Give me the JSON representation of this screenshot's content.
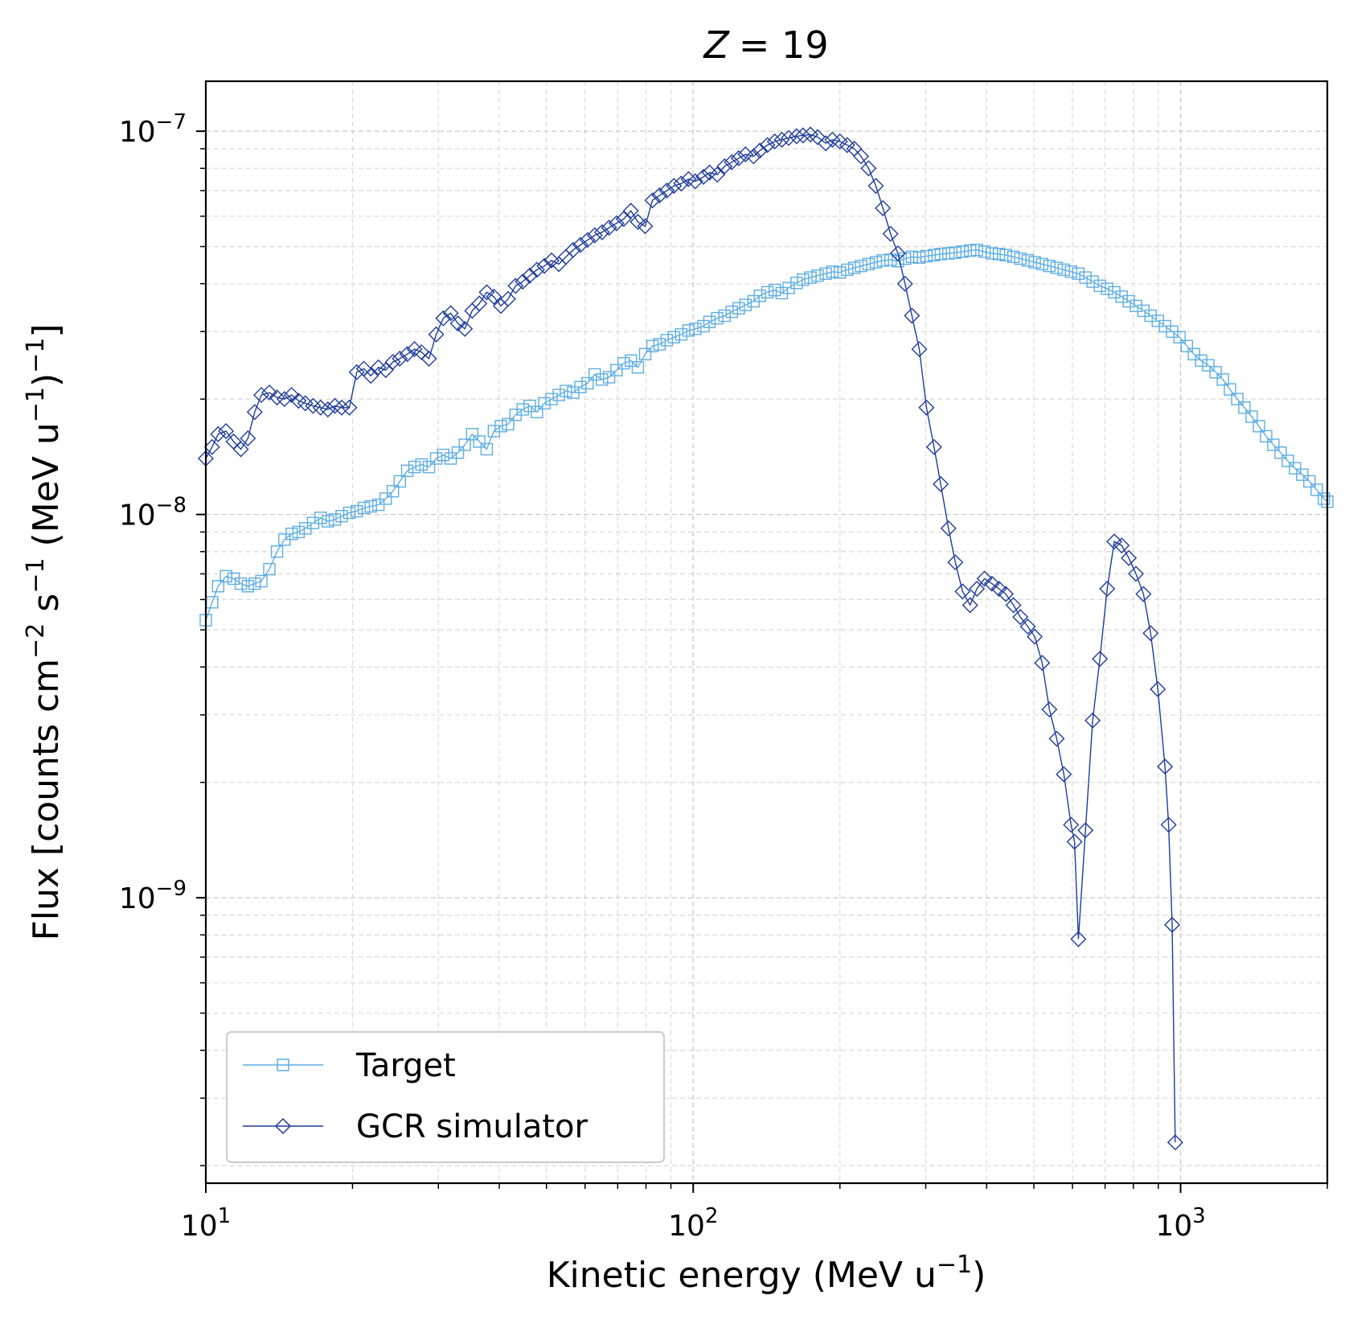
{
  "chart_data": {
    "type": "line",
    "title_var": "Z",
    "title_eq": "= 19",
    "xlabel": "Kinetic energy (MeV u",
    "xlabel_sup": "−1",
    "xlabel_end": ")",
    "ylabel_parts": [
      "Flux [counts cm",
      "−2",
      " s",
      "−1",
      " (MeV u",
      "−1",
      ")",
      "−1",
      "]"
    ],
    "xscale": "log",
    "yscale": "log",
    "xlim": [
      10,
      2000
    ],
    "ylim": [
      1.8e-10,
      1.35e-07
    ],
    "grid": true,
    "legend_position": "lower-left",
    "x_ticks": [
      {
        "value": 10,
        "base": "10",
        "exp": "1"
      },
      {
        "value": 100,
        "base": "10",
        "exp": "2"
      },
      {
        "value": 1000,
        "base": "10",
        "exp": "3"
      }
    ],
    "y_ticks": [
      {
        "value": 1e-09,
        "base": "10",
        "exp": "−9"
      },
      {
        "value": 1e-08,
        "base": "10",
        "exp": "−8"
      },
      {
        "value": 1e-07,
        "base": "10",
        "exp": "−7"
      }
    ],
    "series": [
      {
        "name": "Target",
        "color": "#5dade2",
        "marker": "square",
        "points": [
          [
            10.0,
            5.3e-09
          ],
          [
            10.3,
            5.9e-09
          ],
          [
            10.6,
            6.5e-09
          ],
          [
            11.0,
            6.9e-09
          ],
          [
            11.4,
            6.8e-09
          ],
          [
            11.8,
            6.6e-09
          ],
          [
            12.2,
            6.5e-09
          ],
          [
            12.6,
            6.6e-09
          ],
          [
            13.0,
            6.7e-09
          ],
          [
            13.5,
            7.2e-09
          ],
          [
            14.0,
            8e-09
          ],
          [
            14.5,
            8.6e-09
          ],
          [
            15.0,
            8.9e-09
          ],
          [
            15.5,
            9e-09
          ],
          [
            16.0,
            9.2e-09
          ],
          [
            16.6,
            9.5e-09
          ],
          [
            17.2,
            9.8e-09
          ],
          [
            17.8,
            9.6e-09
          ],
          [
            18.4,
            9.7e-09
          ],
          [
            19.0,
            9.9e-09
          ],
          [
            19.7,
            1.01e-08
          ],
          [
            20.4,
            1.02e-08
          ],
          [
            21.1,
            1.04e-08
          ],
          [
            21.8,
            1.05e-08
          ],
          [
            22.6,
            1.06e-08
          ],
          [
            23.4,
            1.1e-08
          ],
          [
            24.2,
            1.15e-08
          ],
          [
            25.0,
            1.22e-08
          ],
          [
            25.9,
            1.3e-08
          ],
          [
            26.8,
            1.33e-08
          ],
          [
            27.7,
            1.35e-08
          ],
          [
            28.7,
            1.33e-08
          ],
          [
            29.7,
            1.4e-08
          ],
          [
            30.7,
            1.43e-08
          ],
          [
            31.8,
            1.4e-08
          ],
          [
            32.9,
            1.45e-08
          ],
          [
            34.0,
            1.52e-08
          ],
          [
            35.2,
            1.62e-08
          ],
          [
            36.4,
            1.55e-08
          ],
          [
            37.7,
            1.48e-08
          ],
          [
            39.0,
            1.65e-08
          ],
          [
            40.3,
            1.7e-08
          ],
          [
            41.7,
            1.72e-08
          ],
          [
            43.2,
            1.82e-08
          ],
          [
            44.7,
            1.88e-08
          ],
          [
            46.2,
            1.92e-08
          ],
          [
            47.8,
            1.85e-08
          ],
          [
            49.5,
            1.95e-08
          ],
          [
            51.2,
            2e-08
          ],
          [
            53.0,
            2.05e-08
          ],
          [
            54.8,
            2.1e-08
          ],
          [
            56.7,
            2.08e-08
          ],
          [
            58.7,
            2.15e-08
          ],
          [
            60.7,
            2.2e-08
          ],
          [
            62.8,
            2.32e-08
          ],
          [
            65.0,
            2.25e-08
          ],
          [
            67.2,
            2.28e-08
          ],
          [
            69.6,
            2.38e-08
          ],
          [
            72.0,
            2.48e-08
          ],
          [
            74.5,
            2.52e-08
          ],
          [
            77.0,
            2.42e-08
          ],
          [
            79.7,
            2.62e-08
          ],
          [
            82.5,
            2.75e-08
          ],
          [
            85.3,
            2.78e-08
          ],
          [
            88.3,
            2.85e-08
          ],
          [
            91.3,
            2.9e-08
          ],
          [
            94.5,
            2.95e-08
          ],
          [
            97.8,
            3.02e-08
          ],
          [
            101,
            3.05e-08
          ],
          [
            105,
            3.1e-08
          ],
          [
            108,
            3.18e-08
          ],
          [
            112,
            3.25e-08
          ],
          [
            116,
            3.3e-08
          ],
          [
            120,
            3.38e-08
          ],
          [
            124,
            3.45e-08
          ],
          [
            128,
            3.52e-08
          ],
          [
            133,
            3.6e-08
          ],
          [
            137,
            3.72e-08
          ],
          [
            142,
            3.8e-08
          ],
          [
            147,
            3.85e-08
          ],
          [
            152,
            3.78e-08
          ],
          [
            157,
            3.9e-08
          ],
          [
            163,
            4.02e-08
          ],
          [
            168,
            4.1e-08
          ],
          [
            174,
            4.15e-08
          ],
          [
            180,
            4.2e-08
          ],
          [
            187,
            4.25e-08
          ],
          [
            193,
            4.3e-08
          ],
          [
            200,
            4.28e-08
          ],
          [
            207,
            4.35e-08
          ],
          [
            214,
            4.4e-08
          ],
          [
            221,
            4.45e-08
          ],
          [
            229,
            4.5e-08
          ],
          [
            237,
            4.55e-08
          ],
          [
            245,
            4.6e-08
          ],
          [
            254,
            4.62e-08
          ],
          [
            263,
            4.58e-08
          ],
          [
            272,
            4.65e-08
          ],
          [
            281,
            4.7e-08
          ],
          [
            291,
            4.68e-08
          ],
          [
            301,
            4.72e-08
          ],
          [
            312,
            4.75e-08
          ],
          [
            322,
            4.78e-08
          ],
          [
            334,
            4.8e-08
          ],
          [
            345,
            4.82e-08
          ],
          [
            357,
            4.85e-08
          ],
          [
            370,
            4.88e-08
          ],
          [
            382,
            4.9e-08
          ],
          [
            396,
            4.85e-08
          ],
          [
            410,
            4.8e-08
          ],
          [
            424,
            4.78e-08
          ],
          [
            438,
            4.75e-08
          ],
          [
            454,
            4.7e-08
          ],
          [
            469,
            4.65e-08
          ],
          [
            486,
            4.6e-08
          ],
          [
            502,
            4.55e-08
          ],
          [
            520,
            4.5e-08
          ],
          [
            538,
            4.45e-08
          ],
          [
            557,
            4.4e-08
          ],
          [
            576,
            4.35e-08
          ],
          [
            596,
            4.3e-08
          ],
          [
            617,
            4.25e-08
          ],
          [
            638,
            4.15e-08
          ],
          [
            660,
            4.05e-08
          ],
          [
            683,
            3.95e-08
          ],
          [
            707,
            3.88e-08
          ],
          [
            731,
            3.8e-08
          ],
          [
            757,
            3.7e-08
          ],
          [
            783,
            3.6e-08
          ],
          [
            810,
            3.5e-08
          ],
          [
            839,
            3.4e-08
          ],
          [
            868,
            3.3e-08
          ],
          [
            898,
            3.2e-08
          ],
          [
            929,
            3.1e-08
          ],
          [
            961,
            3e-08
          ],
          [
            995,
            2.9e-08
          ],
          [
            1030,
            2.75e-08
          ],
          [
            1065,
            2.62e-08
          ],
          [
            1102,
            2.52e-08
          ],
          [
            1140,
            2.45e-08
          ],
          [
            1180,
            2.35e-08
          ],
          [
            1221,
            2.25e-08
          ],
          [
            1263,
            2.12e-08
          ],
          [
            1307,
            2e-08
          ],
          [
            1352,
            1.9e-08
          ],
          [
            1399,
            1.8e-08
          ],
          [
            1448,
            1.7e-08
          ],
          [
            1498,
            1.6e-08
          ],
          [
            1550,
            1.52e-08
          ],
          [
            1604,
            1.45e-08
          ],
          [
            1659,
            1.38e-08
          ],
          [
            1717,
            1.32e-08
          ],
          [
            1777,
            1.27e-08
          ],
          [
            1838,
            1.22e-08
          ],
          [
            1902,
            1.16e-08
          ],
          [
            1968,
            1.1e-08
          ],
          [
            2000,
            1.08e-08
          ]
        ]
      },
      {
        "name": "GCR simulator",
        "color": "#1f3c99",
        "marker": "diamond",
        "points": [
          [
            10.0,
            1.4e-08
          ],
          [
            10.3,
            1.5e-08
          ],
          [
            10.6,
            1.62e-08
          ],
          [
            11.0,
            1.65e-08
          ],
          [
            11.4,
            1.55e-08
          ],
          [
            11.8,
            1.48e-08
          ],
          [
            12.2,
            1.58e-08
          ],
          [
            12.6,
            1.85e-08
          ],
          [
            13.0,
            2.05e-08
          ],
          [
            13.5,
            2.08e-08
          ],
          [
            14.0,
            2.02e-08
          ],
          [
            14.5,
            2e-08
          ],
          [
            15.0,
            2.05e-08
          ],
          [
            15.5,
            1.98e-08
          ],
          [
            16.0,
            1.95e-08
          ],
          [
            16.6,
            1.92e-08
          ],
          [
            17.2,
            1.9e-08
          ],
          [
            17.8,
            1.88e-08
          ],
          [
            18.4,
            1.92e-08
          ],
          [
            19.0,
            1.9e-08
          ],
          [
            19.7,
            1.9e-08
          ],
          [
            20.4,
            2.35e-08
          ],
          [
            21.1,
            2.4e-08
          ],
          [
            21.8,
            2.3e-08
          ],
          [
            22.6,
            2.42e-08
          ],
          [
            23.4,
            2.38e-08
          ],
          [
            24.2,
            2.5e-08
          ],
          [
            25.0,
            2.55e-08
          ],
          [
            25.9,
            2.62e-08
          ],
          [
            26.8,
            2.7e-08
          ],
          [
            27.7,
            2.65e-08
          ],
          [
            28.7,
            2.55e-08
          ],
          [
            29.7,
            2.95e-08
          ],
          [
            30.7,
            3.25e-08
          ],
          [
            31.8,
            3.35e-08
          ],
          [
            32.9,
            3.15e-08
          ],
          [
            34.0,
            3.05e-08
          ],
          [
            35.2,
            3.4e-08
          ],
          [
            36.4,
            3.55e-08
          ],
          [
            37.7,
            3.8e-08
          ],
          [
            39.0,
            3.7e-08
          ],
          [
            40.3,
            3.5e-08
          ],
          [
            41.7,
            3.65e-08
          ],
          [
            43.2,
            3.95e-08
          ],
          [
            44.7,
            4.05e-08
          ],
          [
            46.2,
            4.2e-08
          ],
          [
            47.8,
            4.35e-08
          ],
          [
            49.5,
            4.45e-08
          ],
          [
            51.2,
            4.6e-08
          ],
          [
            53.0,
            4.5e-08
          ],
          [
            54.8,
            4.7e-08
          ],
          [
            56.7,
            4.9e-08
          ],
          [
            58.7,
            5.05e-08
          ],
          [
            60.7,
            5.2e-08
          ],
          [
            62.8,
            5.35e-08
          ],
          [
            65.0,
            5.45e-08
          ],
          [
            67.2,
            5.6e-08
          ],
          [
            69.6,
            5.75e-08
          ],
          [
            72.0,
            5.9e-08
          ],
          [
            74.5,
            6.2e-08
          ],
          [
            77.0,
            5.8e-08
          ],
          [
            79.7,
            5.65e-08
          ],
          [
            82.5,
            6.6e-08
          ],
          [
            85.3,
            6.8e-08
          ],
          [
            88.3,
            7e-08
          ],
          [
            91.3,
            7.2e-08
          ],
          [
            94.5,
            7.3e-08
          ],
          [
            97.8,
            7.5e-08
          ],
          [
            101,
            7.4e-08
          ],
          [
            105,
            7.6e-08
          ],
          [
            108,
            7.8e-08
          ],
          [
            112,
            7.7e-08
          ],
          [
            116,
            8.1e-08
          ],
          [
            120,
            8.3e-08
          ],
          [
            124,
            8.5e-08
          ],
          [
            128,
            8.7e-08
          ],
          [
            133,
            8.6e-08
          ],
          [
            137,
            8.9e-08
          ],
          [
            142,
            9.2e-08
          ],
          [
            147,
            9.4e-08
          ],
          [
            152,
            9.5e-08
          ],
          [
            157,
            9.6e-08
          ],
          [
            163,
            9.7e-08
          ],
          [
            168,
            9.75e-08
          ],
          [
            174,
            9.8e-08
          ],
          [
            180,
            9.65e-08
          ],
          [
            187,
            9.3e-08
          ],
          [
            193,
            9.5e-08
          ],
          [
            200,
            9.4e-08
          ],
          [
            207,
            9.2e-08
          ],
          [
            214,
            9e-08
          ],
          [
            221,
            8.6e-08
          ],
          [
            229,
            8e-08
          ],
          [
            237,
            7.2e-08
          ],
          [
            245,
            6.3e-08
          ],
          [
            254,
            5.4e-08
          ],
          [
            263,
            4.8e-08
          ],
          [
            272,
            4e-08
          ],
          [
            281,
            3.3e-08
          ],
          [
            291,
            2.7e-08
          ],
          [
            301,
            1.9e-08
          ],
          [
            312,
            1.5e-08
          ],
          [
            322,
            1.2e-08
          ],
          [
            334,
            9.2e-09
          ],
          [
            345,
            7.5e-09
          ],
          [
            357,
            6.3e-09
          ],
          [
            370,
            5.8e-09
          ],
          [
            382,
            6.4e-09
          ],
          [
            396,
            6.8e-09
          ],
          [
            410,
            6.6e-09
          ],
          [
            424,
            6.4e-09
          ],
          [
            438,
            6.2e-09
          ],
          [
            454,
            5.8e-09
          ],
          [
            469,
            5.4e-09
          ],
          [
            486,
            5.1e-09
          ],
          [
            502,
            4.8e-09
          ],
          [
            520,
            4.1e-09
          ],
          [
            538,
            3.1e-09
          ],
          [
            557,
            2.6e-09
          ],
          [
            576,
            2.1e-09
          ],
          [
            596,
            1.55e-09
          ],
          [
            606,
            1.4e-09
          ],
          [
            617,
            7.8e-10
          ],
          [
            638,
            1.5e-09
          ],
          [
            660,
            2.9e-09
          ],
          [
            683,
            4.2e-09
          ],
          [
            707,
            6.4e-09
          ],
          [
            731,
            8.5e-09
          ],
          [
            757,
            8.3e-09
          ],
          [
            783,
            7.7e-09
          ],
          [
            810,
            7e-09
          ],
          [
            839,
            6.2e-09
          ],
          [
            868,
            4.9e-09
          ],
          [
            898,
            3.5e-09
          ],
          [
            929,
            2.2e-09
          ],
          [
            945,
            1.55e-09
          ],
          [
            961,
            8.5e-10
          ],
          [
            975,
            2.3e-10
          ]
        ]
      }
    ]
  }
}
